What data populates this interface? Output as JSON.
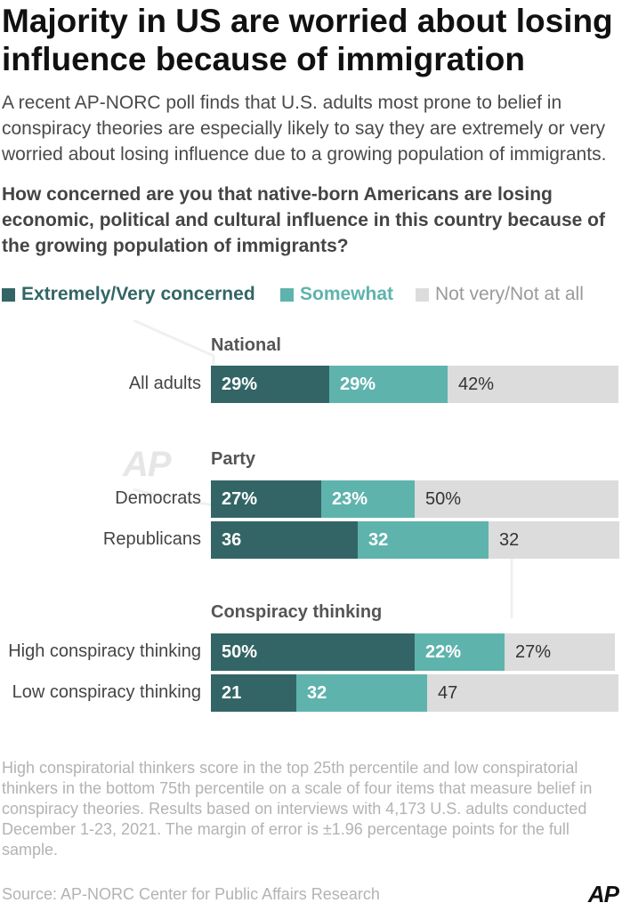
{
  "title": "Majority in US are worried about losing influence because of immigration",
  "subtitle": "A recent AP-NORC poll finds that U.S. adults most prone to belief in conspiracy theories are especially likely to say they are extremely or very worried about losing influence due to a growing population of immigrants.",
  "question": "How concerned are you that native-born Americans are losing economic, political and cultural influence in this country because of the growing population of immigrants?",
  "colors": {
    "extremely_very": "#336566",
    "somewhat": "#5fb3ad",
    "not_very": "#dcdcdc"
  },
  "chart_data": {
    "type": "bar",
    "orientation": "horizontal",
    "stacked": true,
    "xlim": [
      0,
      100
    ],
    "legend_position": "top",
    "grid": false,
    "series": [
      {
        "name": "Extremely/Very concerned",
        "color": "#336566"
      },
      {
        "name": "Somewhat",
        "color": "#5fb3ad"
      },
      {
        "name": "Not very/Not at all",
        "color": "#dcdcdc"
      }
    ],
    "groups": [
      {
        "name": "National",
        "rows": [
          {
            "label": "All adults",
            "values": [
              29,
              29,
              42
            ],
            "labels": [
              "29%",
              "29%",
              "42%"
            ]
          }
        ]
      },
      {
        "name": "Party",
        "rows": [
          {
            "label": "Democrats",
            "values": [
              27,
              23,
              50
            ],
            "labels": [
              "27%",
              "23%",
              "50%"
            ]
          },
          {
            "label": "Republicans",
            "values": [
              36,
              32,
              32
            ],
            "labels": [
              "36",
              "32",
              "32"
            ]
          }
        ]
      },
      {
        "name": "Conspiracy thinking",
        "rows": [
          {
            "label": "High conspiracy thinking",
            "values": [
              50,
              22,
              27
            ],
            "labels": [
              "50%",
              "22%",
              "27%"
            ]
          },
          {
            "label": "Low conspiracy thinking",
            "values": [
              21,
              32,
              47
            ],
            "labels": [
              "21",
              "32",
              "47"
            ]
          }
        ]
      }
    ]
  },
  "footnote": "High conspiratorial thinkers score in the top 25th percentile and low conspiratorial thinkers in the bottom 75th percentile on a scale of four items that measure belief in conspiracy theories. Results based on interviews with 4,173 U.S. adults conducted December 1-23, 2021. The margin of error is ±1.96 percentage points for the full sample.",
  "source": "Source: AP-NORC Center for Public Affairs Research",
  "logo_text": "AP",
  "watermark_text": "AP"
}
